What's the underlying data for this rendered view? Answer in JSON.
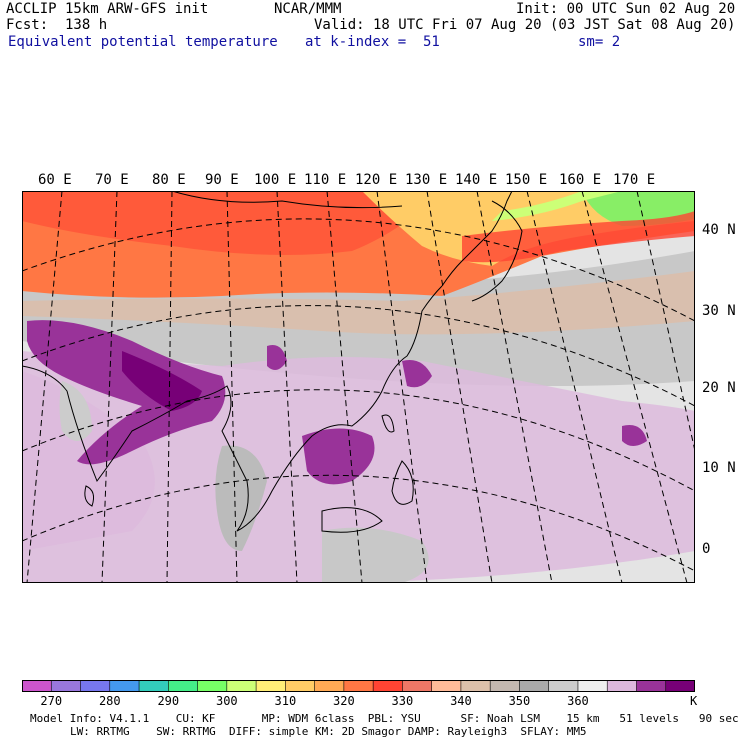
{
  "header": {
    "model_title": "ACCLIP 15km ARW-GFS init",
    "forecast": "Fcst:  138 h",
    "field_name": "Equivalent potential temperature",
    "org": "NCAR/MMM",
    "init": "Init: 00 UTC Sun 02 Aug 20",
    "valid": "Valid: 18 UTC Fri 07 Aug 20 (03 JST Sat 08 Aug 20)",
    "level": "at k-index =  51",
    "smoothing": "sm= 2"
  },
  "map": {
    "lon_labels": [
      "60 E",
      "70 E",
      "80 E",
      "90 E",
      "100 E",
      "110 E",
      "120 E",
      "130 E",
      "140 E",
      "150 E",
      "160 E",
      "170 E"
    ],
    "lat_labels": [
      "40 N",
      "30 N",
      "20 N",
      "10 N",
      "0"
    ]
  },
  "colorbar": {
    "tick_labels": [
      "270",
      "280",
      "290",
      "300",
      "310",
      "320",
      "330",
      "340",
      "350",
      "360"
    ],
    "unit": "K",
    "colors": [
      "#cc55cc",
      "#9977dd",
      "#7777ee",
      "#4499ee",
      "#33ccbb",
      "#44ee88",
      "#77ff66",
      "#ccff77",
      "#ffee77",
      "#ffcc66",
      "#ffaa55",
      "#ff7744",
      "#ff4433",
      "#ee7766",
      "#ffbb99",
      "#ddc0aa",
      "#c4b8b0",
      "#aaaaaa",
      "#cccccc",
      "#eeeeee",
      "#ddb8dd",
      "#993399",
      "#770077"
    ]
  },
  "footer": {
    "line1": "Model Info: V4.1.1    CU: KF       MP: WDM 6class  PBL: YSU      SF: Noah LSM    15 km   51 levels   90 sec",
    "line2": "LW: RRTMG    SW: RRTMG  DIFF: simple KM: 2D Smagor DAMP: Rayleigh3  SFLAY: MM5"
  }
}
